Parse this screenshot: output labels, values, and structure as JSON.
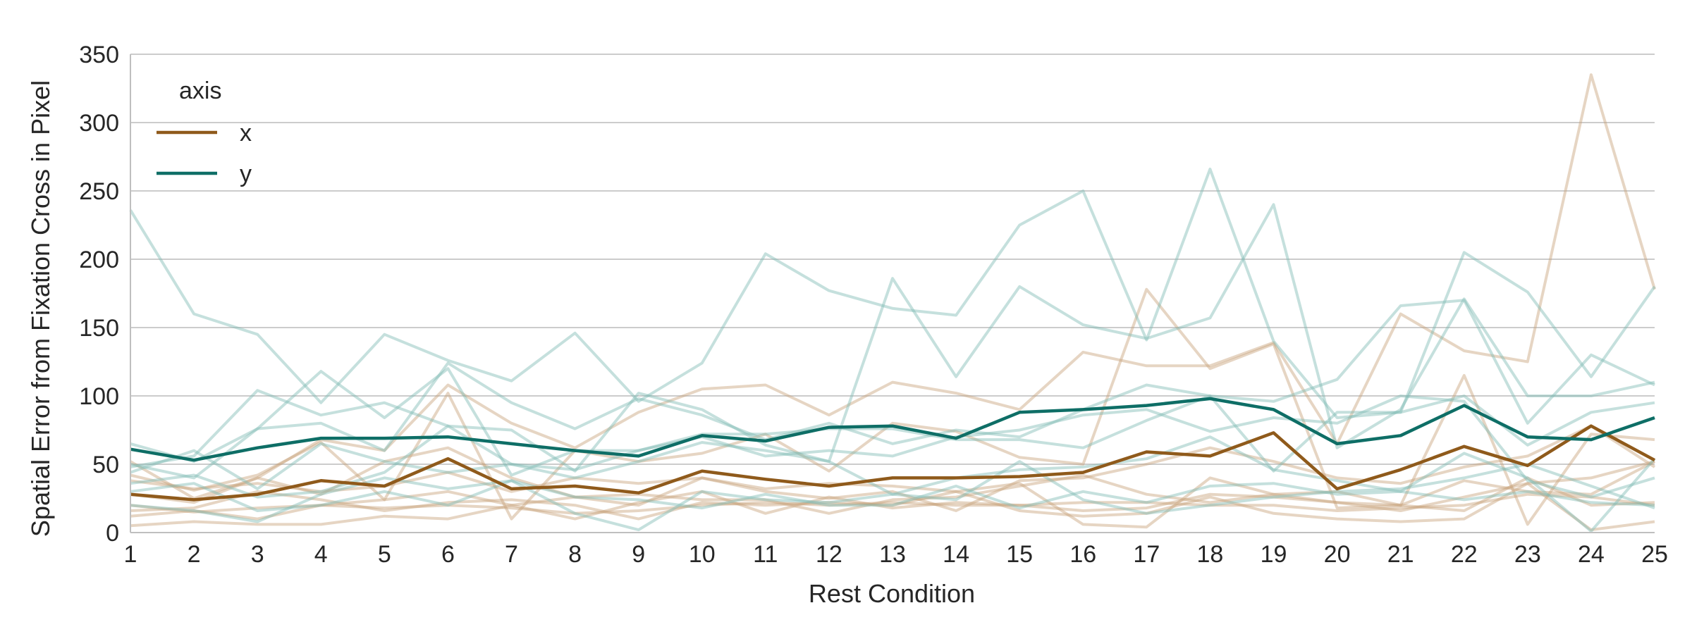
{
  "chart_data": {
    "type": "line",
    "xlabel": "Rest Condition",
    "ylabel": "Spatial Error from Fixation Cross in Pixel",
    "x": [
      1,
      2,
      3,
      4,
      5,
      6,
      7,
      8,
      9,
      10,
      11,
      12,
      13,
      14,
      15,
      16,
      17,
      18,
      19,
      20,
      21,
      22,
      23,
      24,
      25
    ],
    "xlim": [
      1,
      25
    ],
    "ylim": [
      0,
      350
    ],
    "yticks": [
      0,
      50,
      100,
      150,
      200,
      250,
      300,
      350
    ],
    "grid": "horizontal",
    "legend": {
      "title": "axis",
      "position": "top-left",
      "entries": [
        "x",
        "y"
      ]
    },
    "colors": {
      "x": "#8f5a1b",
      "y": "#0e6e66",
      "x_light": "#c8a27a",
      "y_light": "#7fbab3",
      "grid": "#cccccc",
      "axis": "#bfbfbf"
    },
    "series": [
      {
        "name": "x",
        "values": [
          28,
          24,
          28,
          38,
          34,
          54,
          32,
          34,
          29,
          45,
          39,
          34,
          40,
          40,
          41,
          44,
          59,
          56,
          73,
          32,
          46,
          63,
          49,
          78,
          53
        ]
      },
      {
        "name": "y",
        "values": [
          61,
          53,
          62,
          69,
          69,
          70,
          65,
          60,
          56,
          71,
          67,
          77,
          78,
          69,
          88,
          90,
          93,
          98,
          90,
          65,
          71,
          93,
          70,
          68,
          84
        ]
      }
    ],
    "individual_series": [
      {
        "group": "x",
        "values": [
          52,
          25,
          40,
          68,
          60,
          108,
          80,
          62,
          88,
          105,
          108,
          86,
          110,
          102,
          90,
          132,
          122,
          122,
          139,
          65,
          160,
          133,
          125,
          335,
          178
        ]
      },
      {
        "group": "x",
        "values": [
          42,
          31,
          42,
          66,
          24,
          102,
          10,
          60,
          52,
          58,
          72,
          45,
          80,
          74,
          55,
          50,
          178,
          120,
          138,
          18,
          20,
          115,
          6,
          72,
          68
        ]
      },
      {
        "group": "x",
        "values": [
          28,
          22,
          40,
          28,
          52,
          62,
          40,
          26,
          20,
          40,
          30,
          25,
          30,
          16,
          38,
          40,
          50,
          62,
          52,
          40,
          36,
          48,
          56,
          78,
          48
        ]
      },
      {
        "group": "x",
        "values": [
          20,
          15,
          18,
          20,
          18,
          20,
          18,
          14,
          16,
          20,
          22,
          20,
          22,
          20,
          20,
          22,
          22,
          20,
          20,
          16,
          18,
          20,
          28,
          26,
          20
        ]
      },
      {
        "group": "x",
        "values": [
          5,
          8,
          6,
          6,
          12,
          10,
          20,
          10,
          22,
          30,
          14,
          26,
          18,
          22,
          20,
          16,
          18,
          28,
          26,
          22,
          20,
          16,
          40,
          20,
          22
        ]
      },
      {
        "group": "x",
        "values": [
          16,
          18,
          30,
          24,
          16,
          22,
          24,
          20,
          10,
          22,
          20,
          22,
          20,
          30,
          16,
          12,
          14,
          26,
          14,
          10,
          8,
          10,
          36,
          40,
          52
        ]
      },
      {
        "group": "x",
        "values": [
          38,
          32,
          36,
          30,
          34,
          44,
          30,
          40,
          36,
          40,
          32,
          36,
          34,
          30,
          36,
          6,
          4,
          40,
          28,
          30,
          20,
          38,
          30,
          28,
          52
        ]
      },
      {
        "group": "x",
        "values": [
          12,
          16,
          10,
          20,
          24,
          30,
          20,
          26,
          28,
          24,
          24,
          14,
          24,
          26,
          34,
          42,
          28,
          22,
          28,
          22,
          16,
          26,
          36,
          2,
          8
        ]
      },
      {
        "group": "y",
        "values": [
          236,
          160,
          145,
          95,
          145,
          126,
          111,
          146,
          96,
          124,
          204,
          177,
          164,
          159,
          225,
          250,
          141,
          266,
          140,
          84,
          88,
          205,
          176,
          114,
          180
        ]
      },
      {
        "group": "y",
        "values": [
          48,
          56,
          104,
          86,
          95,
          78,
          75,
          45,
          102,
          90,
          64,
          52,
          186,
          114,
          180,
          152,
          142,
          157,
          240,
          62,
          90,
          171,
          100,
          100,
          110
        ]
      },
      {
        "group": "y",
        "values": [
          65,
          52,
          76,
          80,
          60,
          124,
          95,
          76,
          98,
          86,
          68,
          80,
          65,
          75,
          70,
          90,
          108,
          100,
          96,
          112,
          166,
          170,
          80,
          130,
          108
        ]
      },
      {
        "group": "y",
        "values": [
          50,
          40,
          76,
          118,
          84,
          120,
          42,
          60,
          60,
          72,
          72,
          76,
          76,
          68,
          68,
          62,
          82,
          100,
          45,
          88,
          88,
          100,
          64,
          88,
          95
        ]
      },
      {
        "group": "y",
        "values": [
          44,
          60,
          32,
          65,
          52,
          44,
          50,
          46,
          60,
          70,
          56,
          60,
          56,
          70,
          75,
          86,
          90,
          74,
          84,
          80,
          100,
          96,
          38,
          26,
          40
        ]
      },
      {
        "group": "y",
        "values": [
          36,
          42,
          26,
          30,
          44,
          78,
          50,
          40,
          52,
          66,
          60,
          52,
          28,
          40,
          46,
          48,
          54,
          70,
          46,
          38,
          30,
          58,
          40,
          1,
          54
        ]
      },
      {
        "group": "y",
        "values": [
          20,
          16,
          8,
          28,
          40,
          32,
          38,
          14,
          2,
          30,
          24,
          22,
          28,
          24,
          52,
          24,
          14,
          20,
          26,
          30,
          32,
          40,
          50,
          34,
          18
        ]
      },
      {
        "group": "y",
        "values": [
          30,
          36,
          16,
          20,
          30,
          20,
          38,
          26,
          24,
          18,
          28,
          20,
          20,
          34,
          18,
          30,
          22,
          34,
          36,
          28,
          30,
          24,
          30,
          22,
          20
        ]
      }
    ]
  }
}
